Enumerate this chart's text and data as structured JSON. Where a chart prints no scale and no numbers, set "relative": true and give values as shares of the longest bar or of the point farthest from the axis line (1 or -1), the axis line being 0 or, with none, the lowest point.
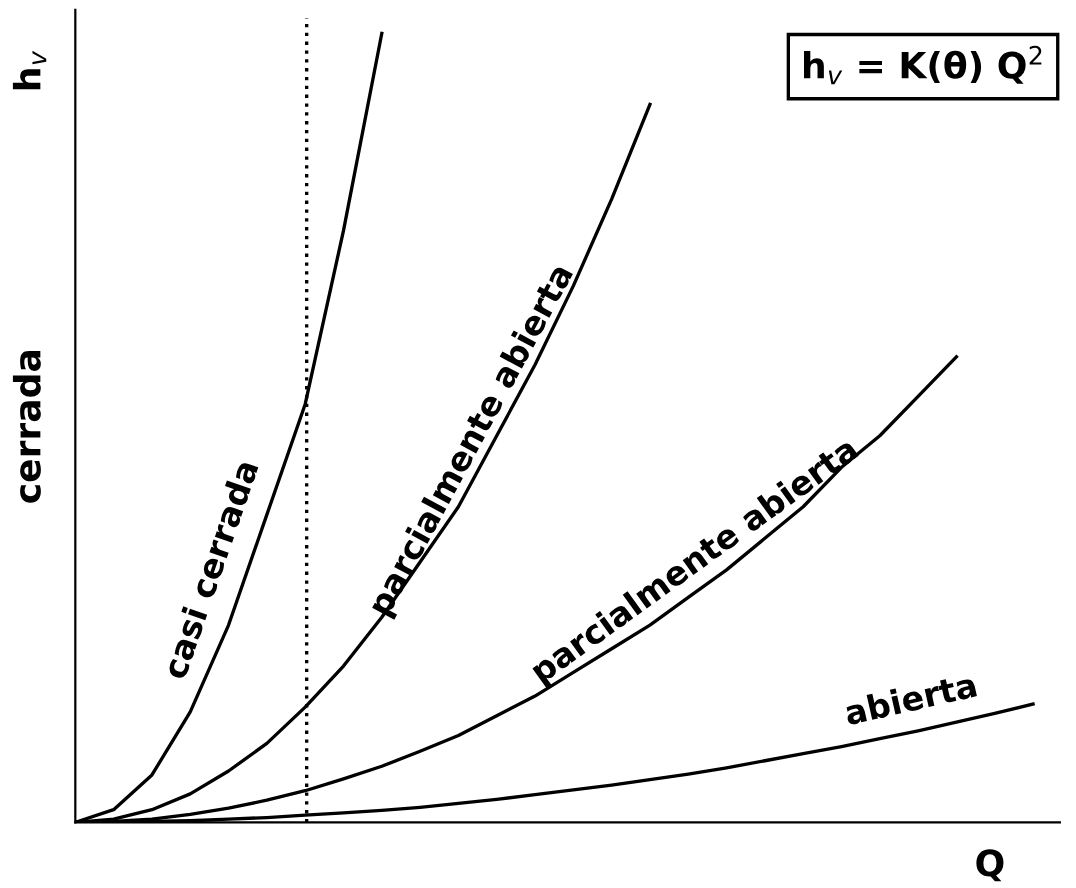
{
  "chart_data": {
    "type": "line",
    "relative": true,
    "xlabel": "Q",
    "ylabel": "h$_{v}$",
    "categories": [
      null,
      null,
      null,
      null,
      null,
      null,
      null,
      null,
      null,
      null,
      null,
      null,
      null,
      null,
      null,
      null,
      null,
      null,
      null,
      null,
      null,
      null,
      null,
      null,
      null,
      null
    ],
    "series": [
      {
        "name": "casi cerrada",
        "color": "#000000",
        "values": [
          0,
          0.016,
          0.06,
          0.14,
          0.25,
          0.39,
          0.53,
          0.75,
          1,
          null,
          null,
          null,
          null,
          null,
          null,
          null,
          null,
          null,
          null,
          null,
          null,
          null,
          null,
          null,
          null,
          null
        ]
      },
      {
        "name": "parcialmente abierta",
        "color": "#000000",
        "values": [
          0,
          0.004,
          0.016,
          0.036,
          0.065,
          0.1,
          0.146,
          0.198,
          0.26,
          0.33,
          0.4,
          0.49,
          0.58,
          0.68,
          0.79,
          0.91,
          null,
          null,
          null,
          null,
          null,
          null,
          null,
          null,
          null,
          null
        ]
      },
      {
        "name": "parcialmente abierta",
        "color": "#000000",
        "values": [
          0,
          0.001,
          0.004,
          0.01,
          0.018,
          0.028,
          0.04,
          0.055,
          0.071,
          0.09,
          0.11,
          0.135,
          0.16,
          0.19,
          0.22,
          0.25,
          0.285,
          0.32,
          0.36,
          0.4,
          0.45,
          0.49,
          0.54,
          0.59,
          null,
          null
        ]
      },
      {
        "name": "abierta",
        "color": "#000000",
        "values": [
          0,
          0,
          0.001,
          0.002,
          0.004,
          0.006,
          0.009,
          0.012,
          0.015,
          0.019,
          0.024,
          0.029,
          0.035,
          0.041,
          0.047,
          0.054,
          0.061,
          0.069,
          0.078,
          0.087,
          0.096,
          0.106,
          0.116,
          0.127,
          0.138,
          0.15
        ]
      }
    ],
    "annotations": [
      "h$_{v}$ = K(θ) Q$^{2}$",
      "cerrada"
    ],
    "legend": false,
    "marker": "none",
    "line_style": "solid"
  }
}
